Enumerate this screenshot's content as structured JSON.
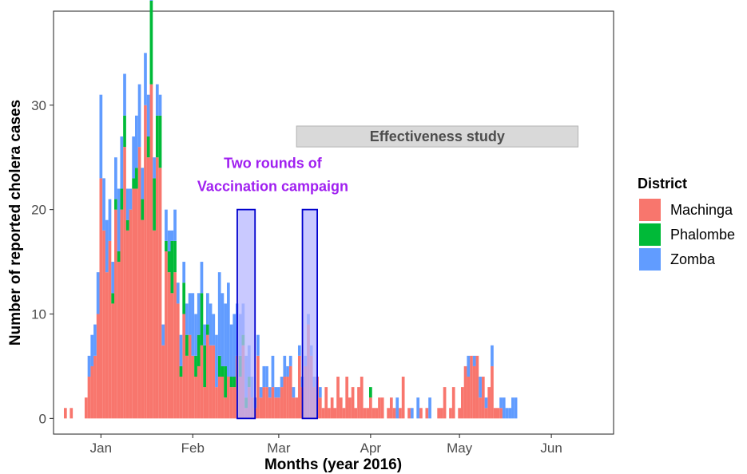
{
  "chart_data": {
    "type": "bar",
    "stacked": true,
    "xlabel": "Months (year 2016)",
    "ylabel": "Number of reported cholera cases",
    "x_ticks": [
      {
        "label": "Jan",
        "date": "2016-01-01"
      },
      {
        "label": "Feb",
        "date": "2016-02-01"
      },
      {
        "label": "Mar",
        "date": "2016-03-01"
      },
      {
        "label": "Apr",
        "date": "2016-04-01"
      },
      {
        "label": "May",
        "date": "2016-05-01"
      },
      {
        "label": "Jun",
        "date": "2016-06-01"
      }
    ],
    "xlim": [
      "2015-12-16",
      "2016-06-22"
    ],
    "y_ticks": [
      0,
      10,
      20,
      30
    ],
    "ylim": [
      -1.5,
      39
    ],
    "legend": {
      "title": "District",
      "position": "right"
    },
    "series": [
      {
        "name": "Machinga",
        "color": "#F8766D",
        "points": [
          [
            "2015-12-20",
            1
          ],
          [
            "2015-12-22",
            1
          ],
          [
            "2015-12-27",
            2
          ],
          [
            "2015-12-28",
            4
          ],
          [
            "2015-12-29",
            5
          ],
          [
            "2015-12-30",
            6
          ],
          [
            "2015-12-31",
            10
          ],
          [
            "2016-01-01",
            23
          ],
          [
            "2016-01-02",
            18
          ],
          [
            "2016-01-03",
            14
          ],
          [
            "2016-01-04",
            17
          ],
          [
            "2016-01-05",
            11
          ],
          [
            "2016-01-06",
            20
          ],
          [
            "2016-01-07",
            15
          ],
          [
            "2016-01-08",
            20
          ],
          [
            "2016-01-09",
            26
          ],
          [
            "2016-01-10",
            18
          ],
          [
            "2016-01-11",
            20
          ],
          [
            "2016-01-12",
            22
          ],
          [
            "2016-01-13",
            22
          ],
          [
            "2016-01-14",
            26
          ],
          [
            "2016-01-15",
            19
          ],
          [
            "2016-01-16",
            30
          ],
          [
            "2016-01-17",
            25
          ],
          [
            "2016-01-18",
            32
          ],
          [
            "2016-01-19",
            18
          ],
          [
            "2016-01-20",
            25
          ],
          [
            "2016-01-21",
            24
          ],
          [
            "2016-01-22",
            7
          ],
          [
            "2016-01-23",
            16
          ],
          [
            "2016-01-24",
            14
          ],
          [
            "2016-01-25",
            12
          ],
          [
            "2016-01-26",
            14
          ],
          [
            "2016-01-27",
            11
          ],
          [
            "2016-01-28",
            4
          ],
          [
            "2016-01-29",
            10
          ],
          [
            "2016-01-30",
            6
          ],
          [
            "2016-01-31",
            8
          ],
          [
            "2016-02-01",
            6
          ],
          [
            "2016-02-02",
            4
          ],
          [
            "2016-02-03",
            5
          ],
          [
            "2016-02-04",
            7
          ],
          [
            "2016-02-05",
            3
          ],
          [
            "2016-02-06",
            8
          ],
          [
            "2016-02-07",
            7
          ],
          [
            "2016-02-08",
            7
          ],
          [
            "2016-02-09",
            3
          ],
          [
            "2016-02-10",
            4
          ],
          [
            "2016-02-11",
            4
          ],
          [
            "2016-02-12",
            2
          ],
          [
            "2016-02-13",
            4
          ],
          [
            "2016-02-14",
            3
          ],
          [
            "2016-02-15",
            3
          ],
          [
            "2016-02-16",
            6
          ],
          [
            "2016-02-17",
            4
          ],
          [
            "2016-02-18",
            7
          ],
          [
            "2016-02-19",
            1
          ],
          [
            "2016-02-20",
            3
          ],
          [
            "2016-02-21",
            2
          ],
          [
            "2016-02-22",
            1
          ],
          [
            "2016-02-23",
            6
          ],
          [
            "2016-02-24",
            2
          ],
          [
            "2016-02-25",
            3
          ],
          [
            "2016-02-26",
            3
          ],
          [
            "2016-02-27",
            2
          ],
          [
            "2016-02-28",
            3
          ],
          [
            "2016-02-29",
            2
          ],
          [
            "2016-03-01",
            2
          ],
          [
            "2016-03-02",
            3
          ],
          [
            "2016-03-03",
            4
          ],
          [
            "2016-03-04",
            4
          ],
          [
            "2016-03-05",
            5
          ],
          [
            "2016-03-06",
            2
          ],
          [
            "2016-03-07",
            2
          ],
          [
            "2016-03-08",
            6
          ],
          [
            "2016-03-09",
            3
          ],
          [
            "2016-03-10",
            5
          ],
          [
            "2016-03-11",
            9
          ],
          [
            "2016-03-12",
            6
          ],
          [
            "2016-03-13",
            3
          ],
          [
            "2016-03-14",
            4
          ],
          [
            "2016-03-15",
            2
          ],
          [
            "2016-03-16",
            1
          ],
          [
            "2016-03-17",
            3
          ],
          [
            "2016-03-18",
            1
          ],
          [
            "2016-03-19",
            2
          ],
          [
            "2016-03-20",
            1
          ],
          [
            "2016-03-21",
            4
          ],
          [
            "2016-03-22",
            2
          ],
          [
            "2016-03-23",
            1
          ],
          [
            "2016-03-24",
            4
          ],
          [
            "2016-03-25",
            2
          ],
          [
            "2016-03-26",
            3
          ],
          [
            "2016-03-27",
            1
          ],
          [
            "2016-03-28",
            3
          ],
          [
            "2016-03-29",
            4
          ],
          [
            "2016-03-30",
            1
          ],
          [
            "2016-03-31",
            1
          ],
          [
            "2016-04-01",
            2
          ],
          [
            "2016-04-02",
            1
          ],
          [
            "2016-04-03",
            1
          ],
          [
            "2016-04-04",
            2
          ],
          [
            "2016-04-05",
            2
          ],
          [
            "2016-04-07",
            1
          ],
          [
            "2016-04-08",
            2
          ],
          [
            "2016-04-09",
            1
          ],
          [
            "2016-04-11",
            1
          ],
          [
            "2016-04-12",
            4
          ],
          [
            "2016-04-14",
            1
          ],
          [
            "2016-04-18",
            1
          ],
          [
            "2016-04-20",
            1
          ],
          [
            "2016-04-24",
            1
          ],
          [
            "2016-04-25",
            1
          ],
          [
            "2016-04-26",
            3
          ],
          [
            "2016-04-28",
            1
          ],
          [
            "2016-04-29",
            3
          ],
          [
            "2016-05-01",
            1
          ],
          [
            "2016-05-02",
            3
          ],
          [
            "2016-05-03",
            5
          ],
          [
            "2016-05-04",
            4
          ],
          [
            "2016-05-05",
            6
          ],
          [
            "2016-05-06",
            5
          ],
          [
            "2016-05-07",
            6
          ],
          [
            "2016-05-08",
            2
          ],
          [
            "2016-05-09",
            4
          ],
          [
            "2016-05-10",
            1
          ],
          [
            "2016-05-11",
            3
          ],
          [
            "2016-05-12",
            5
          ],
          [
            "2016-05-13",
            1
          ],
          [
            "2016-05-14",
            1
          ],
          [
            "2016-05-15",
            1
          ]
        ]
      },
      {
        "name": "Phalombe",
        "color": "#00BA38",
        "points": [
          [
            "2016-01-05",
            1
          ],
          [
            "2016-01-06",
            1
          ],
          [
            "2016-01-07",
            1
          ],
          [
            "2016-01-08",
            2
          ],
          [
            "2016-01-09",
            3
          ],
          [
            "2016-01-10",
            1
          ],
          [
            "2016-01-12",
            1
          ],
          [
            "2016-01-13",
            2
          ],
          [
            "2016-01-15",
            2
          ],
          [
            "2016-01-17",
            2
          ],
          [
            "2016-01-18",
            8
          ],
          [
            "2016-01-19",
            5
          ],
          [
            "2016-01-20",
            4
          ],
          [
            "2016-01-21",
            5
          ],
          [
            "2016-01-23",
            1
          ],
          [
            "2016-01-24",
            2
          ],
          [
            "2016-01-25",
            5
          ],
          [
            "2016-01-26",
            3
          ],
          [
            "2016-01-28",
            1
          ],
          [
            "2016-01-29",
            3
          ],
          [
            "2016-01-30",
            2
          ],
          [
            "2016-02-02",
            2
          ],
          [
            "2016-02-03",
            3
          ],
          [
            "2016-02-04",
            5
          ],
          [
            "2016-02-05",
            4
          ],
          [
            "2016-02-06",
            1
          ],
          [
            "2016-02-10",
            2
          ],
          [
            "2016-02-11",
            1
          ],
          [
            "2016-02-12",
            3
          ],
          [
            "2016-02-14",
            1
          ],
          [
            "2016-02-15",
            1
          ],
          [
            "2016-02-17",
            2
          ],
          [
            "2016-02-18",
            1
          ],
          [
            "2016-02-19",
            1
          ],
          [
            "2016-02-20",
            1
          ],
          [
            "2016-04-01",
            1
          ]
        ]
      },
      {
        "name": "Zomba",
        "color": "#619CFF",
        "points": [
          [
            "2015-12-28",
            2
          ],
          [
            "2015-12-29",
            3
          ],
          [
            "2015-12-30",
            3
          ],
          [
            "2015-12-31",
            4
          ],
          [
            "2016-01-01",
            8
          ],
          [
            "2016-01-02",
            5
          ],
          [
            "2016-01-03",
            5
          ],
          [
            "2016-01-04",
            4
          ],
          [
            "2016-01-05",
            3
          ],
          [
            "2016-01-06",
            4
          ],
          [
            "2016-01-07",
            6
          ],
          [
            "2016-01-08",
            5
          ],
          [
            "2016-01-09",
            4
          ],
          [
            "2016-01-10",
            3
          ],
          [
            "2016-01-11",
            2
          ],
          [
            "2016-01-12",
            4
          ],
          [
            "2016-01-13",
            5
          ],
          [
            "2016-01-14",
            6
          ],
          [
            "2016-01-15",
            3
          ],
          [
            "2016-01-16",
            5
          ],
          [
            "2016-01-17",
            4
          ],
          [
            "2016-01-18",
            2
          ],
          [
            "2016-01-19",
            2
          ],
          [
            "2016-01-20",
            3
          ],
          [
            "2016-01-21",
            2
          ],
          [
            "2016-01-22",
            2
          ],
          [
            "2016-01-23",
            3
          ],
          [
            "2016-01-24",
            2
          ],
          [
            "2016-01-25",
            1
          ],
          [
            "2016-01-26",
            3
          ],
          [
            "2016-01-27",
            2
          ],
          [
            "2016-01-28",
            3
          ],
          [
            "2016-01-29",
            2
          ],
          [
            "2016-01-30",
            3
          ],
          [
            "2016-01-31",
            4
          ],
          [
            "2016-02-01",
            6
          ],
          [
            "2016-02-02",
            4
          ],
          [
            "2016-02-03",
            4
          ],
          [
            "2016-02-04",
            3
          ],
          [
            "2016-02-05",
            2
          ],
          [
            "2016-02-06",
            3
          ],
          [
            "2016-02-07",
            4
          ],
          [
            "2016-02-08",
            3
          ],
          [
            "2016-02-09",
            5
          ],
          [
            "2016-02-10",
            8
          ],
          [
            "2016-02-11",
            7
          ],
          [
            "2016-02-12",
            6
          ],
          [
            "2016-02-13",
            9
          ],
          [
            "2016-02-14",
            5
          ],
          [
            "2016-02-15",
            6
          ],
          [
            "2016-02-16",
            5
          ],
          [
            "2016-02-17",
            4
          ],
          [
            "2016-02-18",
            3
          ],
          [
            "2016-02-19",
            4
          ],
          [
            "2016-02-20",
            3
          ],
          [
            "2016-02-21",
            2
          ],
          [
            "2016-02-22",
            1
          ],
          [
            "2016-02-23",
            2
          ],
          [
            "2016-02-24",
            1
          ],
          [
            "2016-02-25",
            2
          ],
          [
            "2016-02-26",
            2
          ],
          [
            "2016-02-27",
            1
          ],
          [
            "2016-02-28",
            3
          ],
          [
            "2016-02-29",
            1
          ],
          [
            "2016-03-01",
            1
          ],
          [
            "2016-03-02",
            1
          ],
          [
            "2016-03-03",
            2
          ],
          [
            "2016-03-04",
            1
          ],
          [
            "2016-03-05",
            1
          ],
          [
            "2016-03-06",
            1
          ],
          [
            "2016-03-08",
            1
          ],
          [
            "2016-03-09",
            1
          ],
          [
            "2016-03-10",
            1
          ],
          [
            "2016-03-11",
            1
          ],
          [
            "2016-03-12",
            1
          ],
          [
            "2016-03-13",
            1
          ],
          [
            "2016-03-15",
            1
          ],
          [
            "2016-04-10",
            2
          ],
          [
            "2016-04-15",
            1
          ],
          [
            "2016-04-17",
            2
          ],
          [
            "2016-04-21",
            2
          ],
          [
            "2016-05-04",
            2
          ],
          [
            "2016-05-06",
            1
          ],
          [
            "2016-05-08",
            2
          ],
          [
            "2016-05-10",
            1
          ],
          [
            "2016-05-12",
            2
          ],
          [
            "2016-05-15",
            1
          ],
          [
            "2016-05-16",
            2
          ],
          [
            "2016-05-17",
            1
          ],
          [
            "2016-05-18",
            1
          ],
          [
            "2016-05-19",
            2
          ],
          [
            "2016-05-20",
            2
          ]
        ]
      }
    ],
    "annotations": {
      "effectiveness_study": {
        "label": "Effectiveness study",
        "start": "2016-03-07",
        "end": "2016-06-10",
        "y_bottom": 26,
        "y_top": 28,
        "fill": "#D9D9D9",
        "text_color": "#4d4d4d"
      },
      "vaccination_label": {
        "lines": [
          "Two rounds of",
          "Vaccination campaign"
        ],
        "color": "#A020F0"
      },
      "vaccination_rounds": [
        {
          "start": "2016-02-16",
          "end": "2016-02-22",
          "y_bottom": 0,
          "y_top": 20
        },
        {
          "start": "2016-03-09",
          "end": "2016-03-14",
          "y_bottom": 0,
          "y_top": 20
        }
      ],
      "round_fill": "#B7B7FF",
      "round_stroke": "#0000CD"
    }
  }
}
